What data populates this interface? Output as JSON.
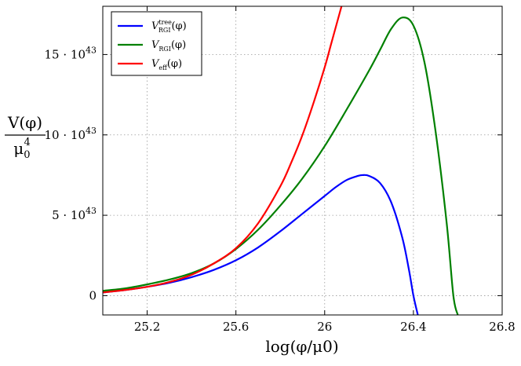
{
  "chart_data": {
    "type": "line",
    "title": "",
    "xlabel": "log(φ/μ0)",
    "ylabel": "V(φ) / μ0^4",
    "ylabel_num": "V(φ)",
    "ylabel_den": "μ",
    "ylabel_den_sub": "0",
    "ylabel_den_sup": "4",
    "xlim": [
      25.0,
      26.8
    ],
    "ylim": [
      -1.2e+43,
      1.8e+44
    ],
    "grid": true,
    "legend_position": "top-left",
    "x_ticks": [
      {
        "value": 25.2,
        "label": "25.2"
      },
      {
        "value": 25.6,
        "label": "25.6"
      },
      {
        "value": 26.0,
        "label": "26"
      },
      {
        "value": 26.4,
        "label": "26.4"
      },
      {
        "value": 26.8,
        "label": "26.8"
      }
    ],
    "y_ticks": [
      {
        "value": 0,
        "label": "0",
        "coef": "",
        "exp": ""
      },
      {
        "value": 5e+43,
        "label": "",
        "coef": "5 · 10",
        "exp": "43"
      },
      {
        "value": 1e+44,
        "label": "",
        "coef": "10 · 10",
        "exp": "43"
      },
      {
        "value": 1.5e+44,
        "label": "",
        "coef": "15 · 10",
        "exp": "43"
      }
    ],
    "series": [
      {
        "name": "V_RGI^tree(φ)",
        "legend_main": "V",
        "legend_sub": "RGI",
        "legend_sup": "tree",
        "legend_arg": "(φ)",
        "color": "#0000ff",
        "points": [
          [
            25.0,
            2e+42
          ],
          [
            25.1,
            3.5e+42
          ],
          [
            25.2,
            5.5e+42
          ],
          [
            25.3,
            8e+42
          ],
          [
            25.4,
            1.15e+43
          ],
          [
            25.5,
            1.6e+43
          ],
          [
            25.6,
            2.2e+43
          ],
          [
            25.7,
            3e+43
          ],
          [
            25.8,
            4e+43
          ],
          [
            25.9,
            5.1e+43
          ],
          [
            26.0,
            6.2e+43
          ],
          [
            26.05,
            6.75e+43
          ],
          [
            26.1,
            7.2e+43
          ],
          [
            26.15,
            7.45e+43
          ],
          [
            26.17,
            7.5e+43
          ],
          [
            26.2,
            7.45e+43
          ],
          [
            26.25,
            7e+43
          ],
          [
            26.3,
            5.8e+43
          ],
          [
            26.35,
            3.6e+43
          ],
          [
            26.38,
            1.6e+43
          ],
          [
            26.4,
            0.0
          ],
          [
            26.42,
            -1.2e+43
          ]
        ]
      },
      {
        "name": "V_RGI(φ)",
        "legend_main": "V",
        "legend_sub": "RGI",
        "legend_sup": "",
        "legend_arg": "(φ)",
        "color": "#008000",
        "points": [
          [
            25.0,
            3e+42
          ],
          [
            25.1,
            4.5e+42
          ],
          [
            25.2,
            7e+42
          ],
          [
            25.3,
            1e+43
          ],
          [
            25.4,
            1.4e+43
          ],
          [
            25.5,
            2e+43
          ],
          [
            25.6,
            2.9e+43
          ],
          [
            25.7,
            4.1e+43
          ],
          [
            25.8,
            5.6e+43
          ],
          [
            25.9,
            7.3e+43
          ],
          [
            26.0,
            9.3e+43
          ],
          [
            26.1,
            1.16e+44
          ],
          [
            26.2,
            1.4e+44
          ],
          [
            26.25,
            1.53e+44
          ],
          [
            26.3,
            1.66e+44
          ],
          [
            26.35,
            1.73e+44
          ],
          [
            26.4,
            1.68e+44
          ],
          [
            26.45,
            1.45e+44
          ],
          [
            26.5,
            1.02e+44
          ],
          [
            26.55,
            4.5e+43
          ],
          [
            26.58,
            0.0
          ],
          [
            26.6,
            -1.2e+43
          ]
        ]
      },
      {
        "name": "V_eff(φ)",
        "legend_main": "V",
        "legend_sub": "eff",
        "legend_sup": "",
        "legend_arg": "(φ)",
        "color": "#ff0000",
        "points": [
          [
            25.0,
            2e+42
          ],
          [
            25.1,
            3.5e+42
          ],
          [
            25.2,
            5.5e+42
          ],
          [
            25.3,
            8.5e+42
          ],
          [
            25.4,
            1.3e+43
          ],
          [
            25.5,
            2e+43
          ],
          [
            25.6,
            2.95e+43
          ],
          [
            25.7,
            4.5e+43
          ],
          [
            25.8,
            6.8e+43
          ],
          [
            25.85,
            8.3e+43
          ],
          [
            25.9,
            1e+44
          ],
          [
            25.95,
            1.2e+44
          ],
          [
            26.0,
            1.42e+44
          ],
          [
            26.03,
            1.57e+44
          ],
          [
            26.06,
            1.72e+44
          ],
          [
            26.08,
            1.82e+44
          ]
        ]
      }
    ]
  }
}
